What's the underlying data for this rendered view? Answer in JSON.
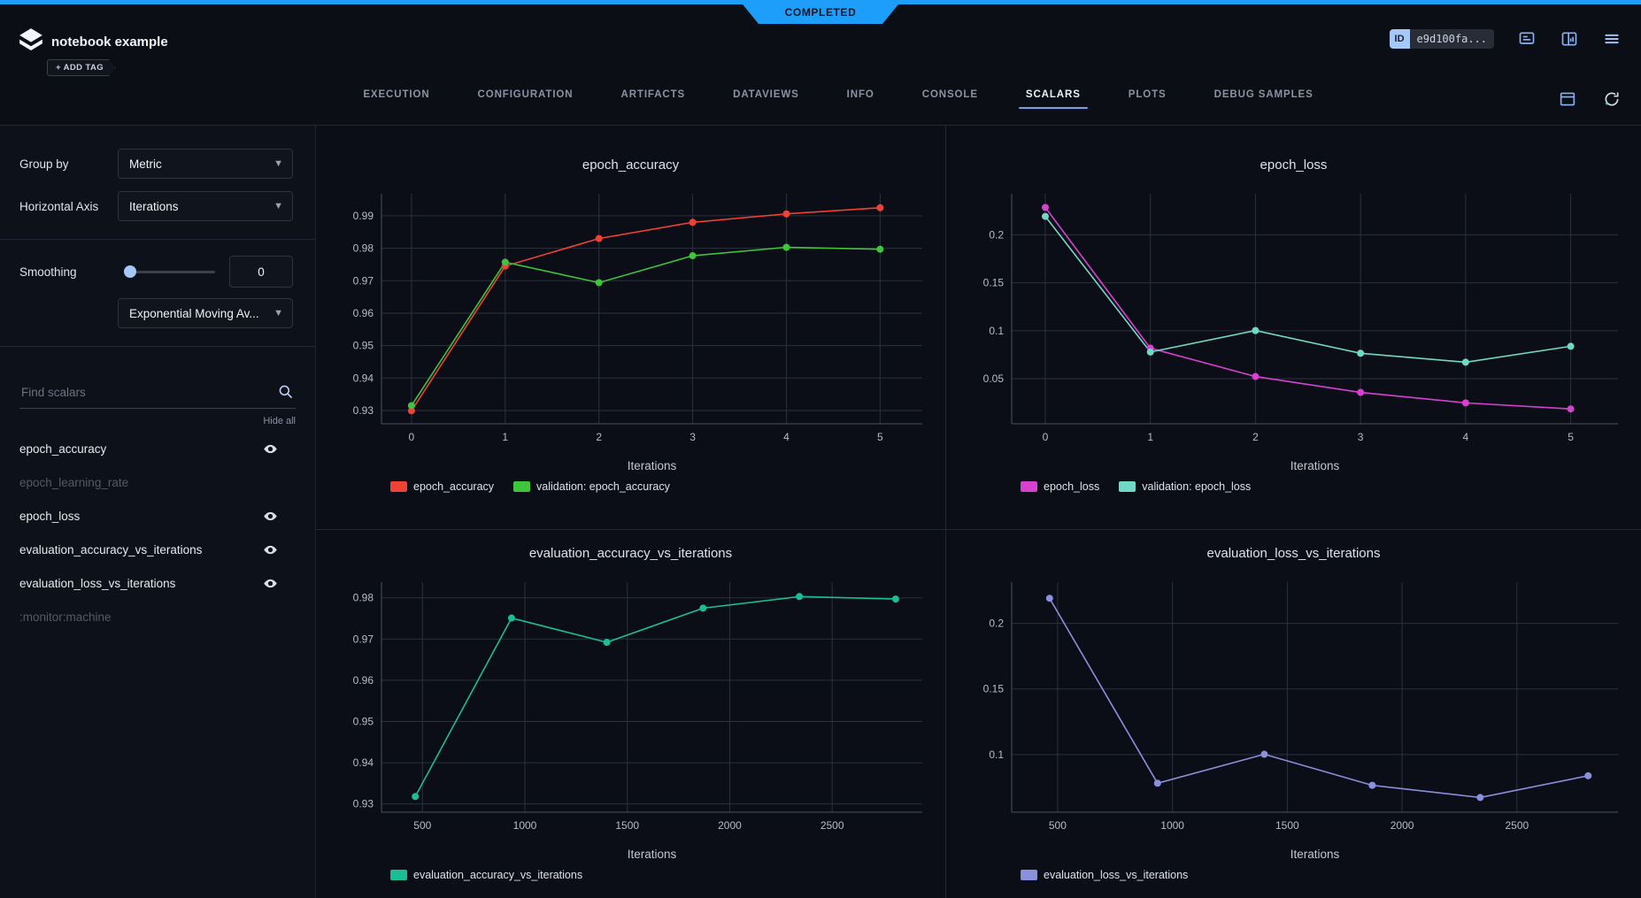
{
  "banner": {
    "label": "COMPLETED"
  },
  "header": {
    "title": "notebook example",
    "add_tag_label": "+ ADD TAG",
    "id_badge": "ID",
    "id_value": "e9d100fa...",
    "tabs": [
      "EXECUTION",
      "CONFIGURATION",
      "ARTIFACTS",
      "DATAVIEWS",
      "INFO",
      "CONSOLE",
      "SCALARS",
      "PLOTS",
      "DEBUG SAMPLES"
    ],
    "active_tab": "SCALARS"
  },
  "sidebar": {
    "group_by": {
      "label": "Group by",
      "value": "Metric"
    },
    "horizontal_axis": {
      "label": "Horizontal Axis",
      "value": "Iterations"
    },
    "smoothing": {
      "label": "Smoothing",
      "value": "0",
      "method": "Exponential Moving Av..."
    },
    "search": {
      "placeholder": "Find scalars"
    },
    "hide_all_label": "Hide all",
    "metrics": [
      {
        "name": "epoch_accuracy",
        "dimmed": false,
        "eye": true
      },
      {
        "name": "epoch_learning_rate",
        "dimmed": true,
        "eye": false
      },
      {
        "name": "epoch_loss",
        "dimmed": false,
        "eye": true
      },
      {
        "name": "evaluation_accuracy_vs_iterations",
        "dimmed": false,
        "eye": true
      },
      {
        "name": "evaluation_loss_vs_iterations",
        "dimmed": false,
        "eye": true
      },
      {
        "name": ":monitor:machine",
        "dimmed": true,
        "eye": false
      }
    ]
  },
  "colors": {
    "accent_blue": "#1e9efb",
    "red": "#ef4136",
    "green": "#3fc53b",
    "magenta": "#d840d0",
    "teal": "#72d8c6",
    "emerald": "#1bbd97",
    "purple": "#8b90dd"
  },
  "chart_data": [
    {
      "type": "line",
      "title": "epoch_accuracy",
      "xlabel": "Iterations",
      "x": [
        0,
        1,
        2,
        3,
        4,
        5
      ],
      "xticks": [
        "0",
        "1",
        "2",
        "3",
        "4",
        "5"
      ],
      "yticks": [
        "0.93",
        "0.94",
        "0.95",
        "0.96",
        "0.97",
        "0.98",
        "0.99"
      ],
      "xlim": [
        -0.32,
        5.45
      ],
      "ylim": [
        0.9259,
        0.9968
      ],
      "grid": true,
      "legend_position": "bottom-left",
      "series": [
        {
          "name": "epoch_accuracy",
          "color": "#ef4136",
          "values": [
            0.9299,
            0.9745,
            0.983,
            0.988,
            0.9906,
            0.9925
          ]
        },
        {
          "name": "validation: epoch_accuracy",
          "color": "#3fc53b",
          "values": [
            0.9315,
            0.9757,
            0.9694,
            0.9777,
            0.9803,
            0.9797
          ]
        }
      ]
    },
    {
      "type": "line",
      "title": "epoch_loss",
      "xlabel": "Iterations",
      "x": [
        0,
        1,
        2,
        3,
        4,
        5
      ],
      "xticks": [
        "0",
        "1",
        "2",
        "3",
        "4",
        "5"
      ],
      "yticks": [
        "0.05",
        "0.1",
        "0.15",
        "0.2"
      ],
      "xlim": [
        -0.32,
        5.45
      ],
      "ylim": [
        0.003,
        0.2428
      ],
      "grid": true,
      "legend_position": "bottom-left",
      "series": [
        {
          "name": "epoch_loss",
          "color": "#d840d0",
          "values": [
            0.2285,
            0.0818,
            0.0523,
            0.0357,
            0.0248,
            0.0185
          ]
        },
        {
          "name": "validation: epoch_loss",
          "color": "#72d8c6",
          "values": [
            0.2192,
            0.0778,
            0.1002,
            0.0765,
            0.0672,
            0.0838
          ]
        }
      ]
    },
    {
      "type": "line",
      "title": "evaluation_accuracy_vs_iterations",
      "xlabel": "Iterations",
      "x": [
        465,
        935,
        1400,
        1870,
        2340,
        2810
      ],
      "xticks": [
        "500",
        "1000",
        "1500",
        "2000",
        "2500"
      ],
      "yticks": [
        "0.93",
        "0.94",
        "0.95",
        "0.96",
        "0.97",
        "0.98"
      ],
      "xlim": [
        300,
        2940
      ],
      "ylim": [
        0.928,
        0.9838
      ],
      "grid": true,
      "legend_position": "bottom-left",
      "series": [
        {
          "name": "evaluation_accuracy_vs_iterations",
          "color": "#1bbd97",
          "values": [
            0.9318,
            0.9751,
            0.9692,
            0.9775,
            0.9803,
            0.9797
          ]
        }
      ]
    },
    {
      "type": "line",
      "title": "evaluation_loss_vs_iterations",
      "xlabel": "Iterations",
      "x": [
        465,
        935,
        1400,
        1870,
        2340,
        2810
      ],
      "xticks": [
        "500",
        "1000",
        "1500",
        "2000",
        "2500"
      ],
      "yticks": [
        "0.1",
        "0.15",
        "0.2"
      ],
      "xlim": [
        300,
        2940
      ],
      "ylim": [
        0.056,
        0.2315
      ],
      "grid": true,
      "legend_position": "bottom-left",
      "series": [
        {
          "name": "evaluation_loss_vs_iterations",
          "color": "#8b90dd",
          "values": [
            0.2192,
            0.0781,
            0.1002,
            0.0765,
            0.0672,
            0.0838
          ]
        }
      ]
    }
  ]
}
